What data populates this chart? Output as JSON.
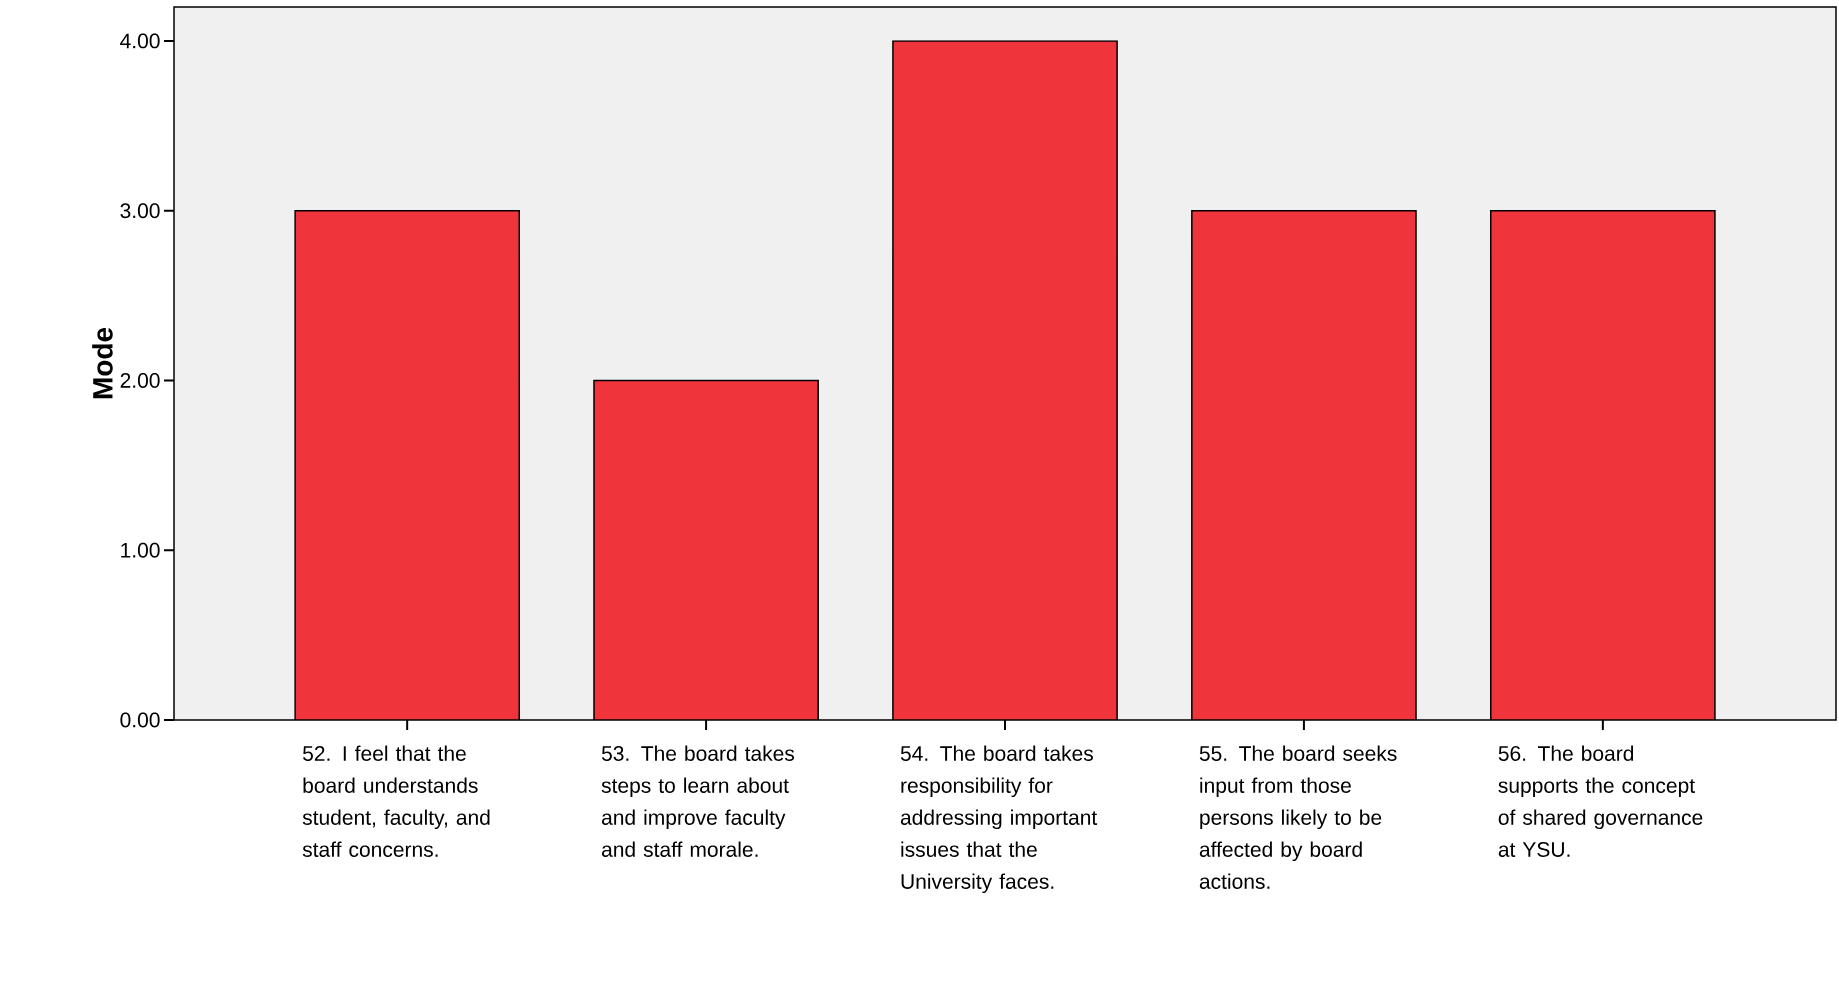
{
  "chart_data": {
    "type": "bar",
    "ylabel": "Mode",
    "categories": [
      "52. I feel that the board understands student, faculty, and staff concerns.",
      "53. The board takes steps to learn about and improve faculty and staff morale.",
      "54. The board takes responsibility for addressing important issues that the University faces.",
      "55. The board seeks input from those persons likely to be affected by board actions.",
      "56. The board supports the concept of shared governance at YSU."
    ],
    "values": [
      3,
      2,
      4,
      3,
      3
    ],
    "color": "#f0343c",
    "ylim": [
      0,
      4.2
    ],
    "yticks": [
      {
        "value": 0,
        "label": "0.00"
      },
      {
        "value": 1,
        "label": "1.00"
      },
      {
        "value": 2,
        "label": "2.00"
      },
      {
        "value": 3,
        "label": "3.00"
      },
      {
        "value": 4,
        "label": "4.00"
      }
    ]
  }
}
